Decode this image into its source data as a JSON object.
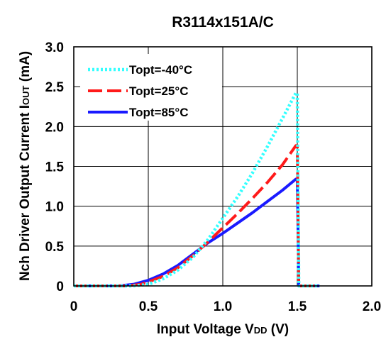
{
  "chart_data": {
    "type": "line",
    "title": "R3114x151A/C",
    "xlabel": {
      "main": "Input Voltage V",
      "sub": "DD",
      "unit": " (V)"
    },
    "ylabel": {
      "main": "Nch Driver Output Current I",
      "sub": "OUT",
      "unit": " (mA)"
    },
    "xlim": [
      0,
      2.0
    ],
    "ylim": [
      0,
      3.0
    ],
    "x_ticks": [
      "0",
      "0.5",
      "1.0",
      "1.5",
      "2.0"
    ],
    "y_ticks": [
      "0",
      "0.5",
      "1.0",
      "1.5",
      "2.0",
      "2.5",
      "3.0"
    ],
    "grid": true,
    "legend_position": "top-left",
    "series": [
      {
        "name": "Topt=-40°C",
        "color": "#33ffff",
        "style": "dotted",
        "x": [
          0,
          0.4,
          0.5,
          0.6,
          0.7,
          0.8,
          0.9,
          1.0,
          1.1,
          1.2,
          1.3,
          1.4,
          1.49,
          1.5,
          1.51,
          1.6,
          1.65
        ],
        "y": [
          0,
          0,
          0.02,
          0.09,
          0.2,
          0.36,
          0.58,
          0.85,
          1.12,
          1.42,
          1.75,
          2.1,
          2.42,
          2.42,
          0,
          0,
          0
        ]
      },
      {
        "name": "Topt=25°C",
        "color": "#ff1a1a",
        "style": "dashed",
        "x": [
          0,
          0.35,
          0.45,
          0.5,
          0.6,
          0.7,
          0.8,
          0.9,
          1.0,
          1.1,
          1.2,
          1.3,
          1.4,
          1.49,
          1.5,
          1.51,
          1.6,
          1.65
        ],
        "y": [
          0,
          0,
          0.02,
          0.05,
          0.12,
          0.23,
          0.38,
          0.55,
          0.73,
          0.91,
          1.1,
          1.3,
          1.52,
          1.76,
          1.76,
          0,
          0,
          0
        ]
      },
      {
        "name": "Topt=85°C",
        "color": "#1a1aff",
        "style": "solid",
        "x": [
          0,
          0.3,
          0.4,
          0.5,
          0.6,
          0.7,
          0.8,
          0.9,
          1.0,
          1.1,
          1.2,
          1.3,
          1.4,
          1.49,
          1.5,
          1.51,
          1.6,
          1.65
        ],
        "y": [
          0,
          0,
          0.02,
          0.07,
          0.15,
          0.26,
          0.4,
          0.54,
          0.66,
          0.79,
          0.92,
          1.06,
          1.2,
          1.34,
          1.34,
          0,
          0,
          0
        ]
      }
    ]
  }
}
